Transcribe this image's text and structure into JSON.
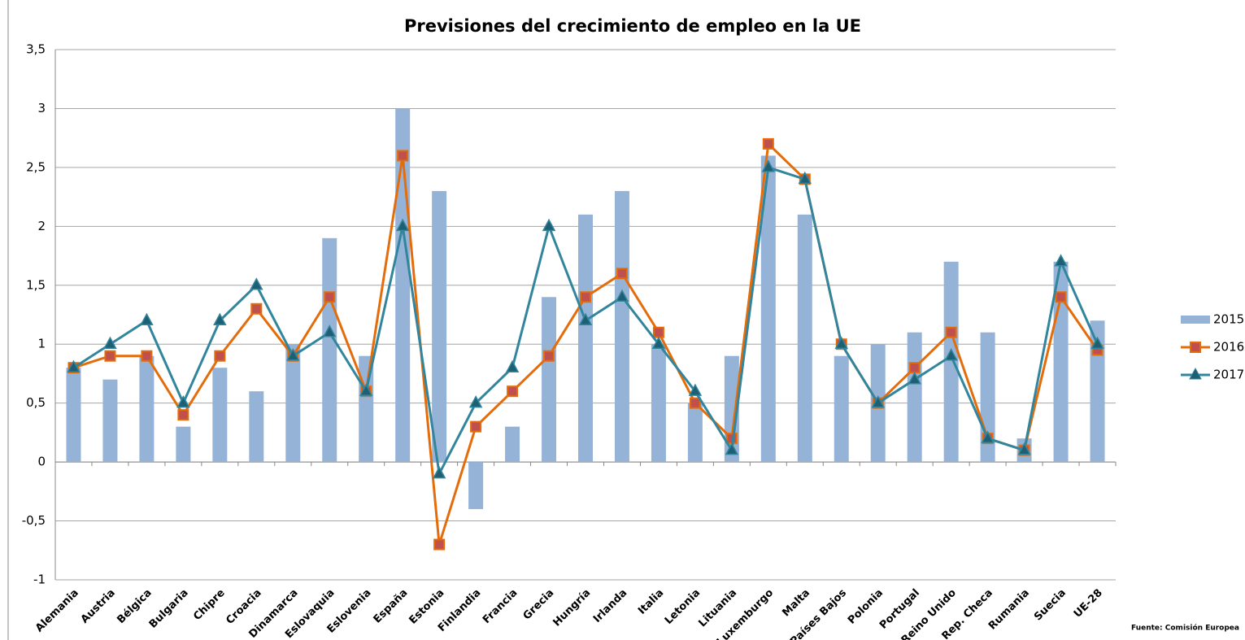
{
  "chart_data": {
    "type": "bar-line",
    "title": "Previsiones del crecimiento de empleo en la UE",
    "categories": [
      "Alemania",
      "Austria",
      "Bélgica",
      "Bulgaria",
      "Chipre",
      "Croacia",
      "Dinamarca",
      "Eslovaquia",
      "Eslovenia",
      "España",
      "Estonia",
      "Finlandia",
      "Francia",
      "Grecia",
      "Hungría",
      "Irlanda",
      "Italia",
      "Letonia",
      "Lituania",
      "Luxemburgo",
      "Malta",
      "Países Bajos",
      "Polonia",
      "Portugal",
      "Reino Unido",
      "Rep. Checa",
      "Rumania",
      "Suecia",
      "UE-28"
    ],
    "series": [
      {
        "name": "2015",
        "type": "bar",
        "color": "#95b3d7",
        "values": [
          0.8,
          0.7,
          0.9,
          0.3,
          0.8,
          0.6,
          1.0,
          1.9,
          0.9,
          3.0,
          2.3,
          -0.4,
          0.3,
          1.4,
          2.1,
          2.3,
          1.0,
          0.5,
          0.9,
          2.6,
          2.1,
          0.9,
          1.0,
          1.1,
          1.7,
          1.1,
          0.2,
          1.7,
          1.2
        ]
      },
      {
        "name": "2016",
        "type": "line",
        "marker": "square",
        "color": "#e46c0a",
        "marker_color": "#c0504d",
        "values": [
          0.8,
          0.9,
          0.9,
          0.4,
          0.9,
          1.3,
          0.9,
          1.4,
          0.6,
          2.6,
          -0.7,
          0.3,
          0.6,
          0.9,
          1.4,
          1.6,
          1.1,
          0.5,
          0.2,
          2.7,
          2.4,
          1.0,
          0.5,
          0.8,
          1.1,
          0.2,
          0.1,
          1.4,
          0.95
        ]
      },
      {
        "name": "2017",
        "type": "line",
        "marker": "triangle",
        "color": "#31859c",
        "marker_color": "#1f5f73",
        "values": [
          0.8,
          1.0,
          1.2,
          0.5,
          1.2,
          1.5,
          0.9,
          1.1,
          0.6,
          2.0,
          -0.1,
          0.5,
          0.8,
          2.0,
          1.2,
          1.4,
          1.0,
          0.6,
          0.1,
          2.5,
          2.4,
          1.0,
          0.5,
          0.7,
          0.9,
          0.2,
          0.1,
          1.7,
          1.0
        ]
      }
    ],
    "ylim": [
      -1,
      3.5
    ],
    "yticks": [
      -1,
      {
        "value": -0.5,
        "label": "-0,5"
      },
      0,
      {
        "value": 0.5,
        "label": "0,5"
      },
      1,
      {
        "value": 1.5,
        "label": "1,5"
      },
      2,
      {
        "value": 2.5,
        "label": "2,5"
      },
      3,
      {
        "value": 3.5,
        "label": "3,5"
      }
    ],
    "grid": true,
    "legend": "right",
    "source": "Fuente: Comisión Europea"
  }
}
